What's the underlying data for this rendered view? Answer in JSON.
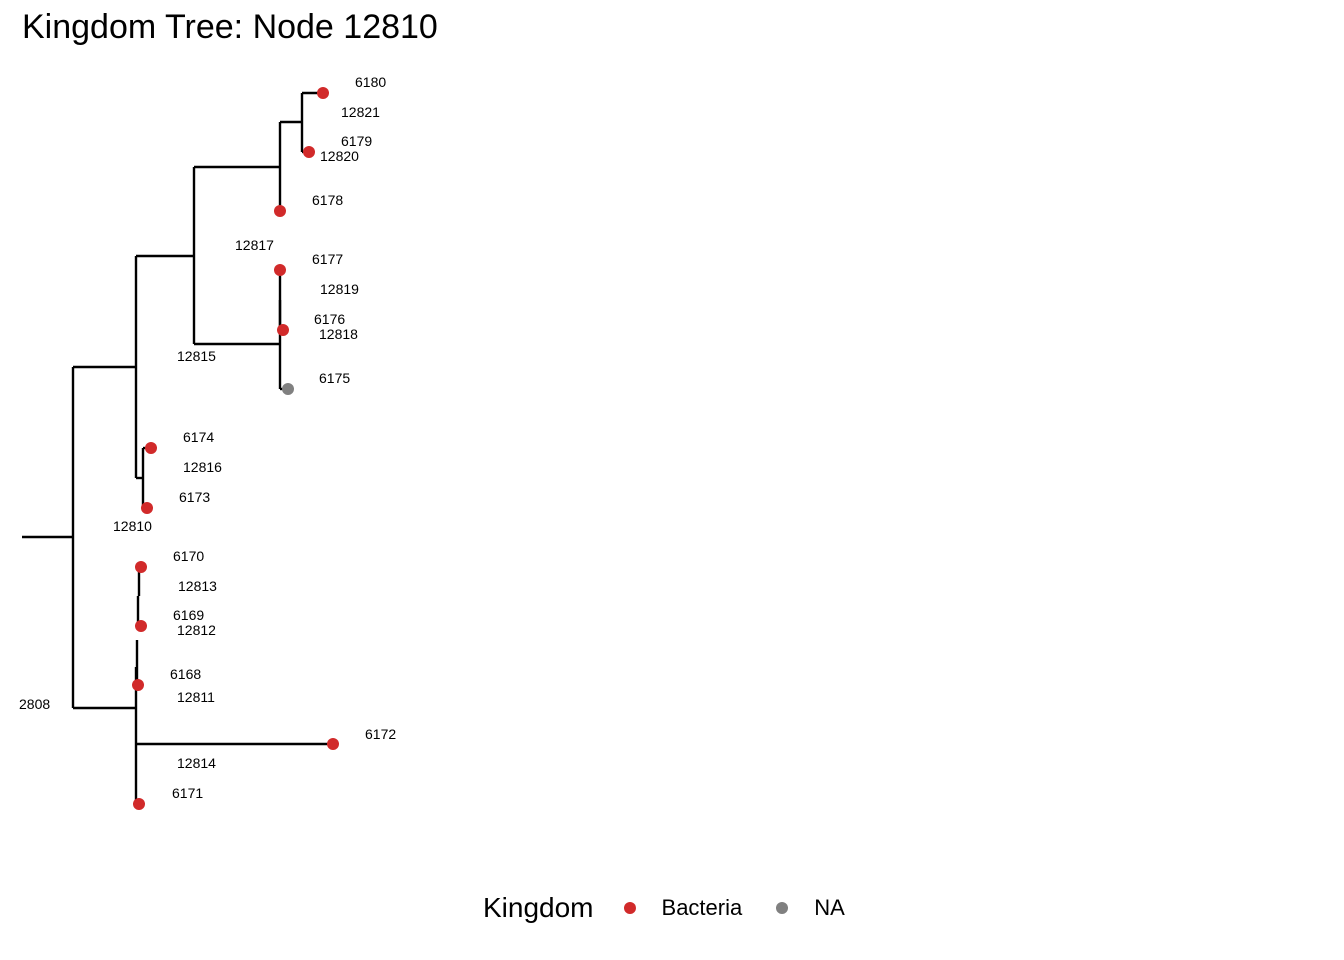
{
  "title": "Kingdom Tree: Node 12810",
  "legend": {
    "title": "Kingdom",
    "items": [
      {
        "label": "Bacteria",
        "color": "#D12A2A"
      },
      {
        "label": "NA",
        "color": "#808080"
      }
    ]
  },
  "tree": {
    "tips": [
      {
        "label": "6180",
        "kingdom": "Bacteria"
      },
      {
        "label": "6179",
        "kingdom": "Bacteria"
      },
      {
        "label": "6178",
        "kingdom": "Bacteria"
      },
      {
        "label": "6177",
        "kingdom": "Bacteria"
      },
      {
        "label": "6176",
        "kingdom": "Bacteria"
      },
      {
        "label": "6175",
        "kingdom": "NA"
      },
      {
        "label": "6174",
        "kingdom": "Bacteria"
      },
      {
        "label": "6173",
        "kingdom": "Bacteria"
      },
      {
        "label": "6170",
        "kingdom": "Bacteria"
      },
      {
        "label": "6169",
        "kingdom": "Bacteria"
      },
      {
        "label": "6168",
        "kingdom": "Bacteria"
      },
      {
        "label": "6172",
        "kingdom": "Bacteria"
      },
      {
        "label": "6171",
        "kingdom": "Bacteria"
      }
    ],
    "internal_labels": [
      "12821",
      "12820",
      "12817",
      "12819",
      "12818",
      "12815",
      "12816",
      "12810",
      "12813",
      "12812",
      "12811",
      "12814",
      "2808"
    ]
  }
}
